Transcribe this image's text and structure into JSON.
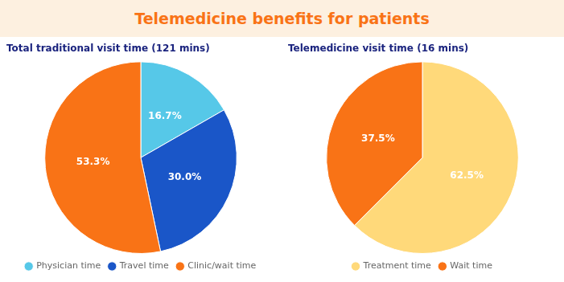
{
  "title": "Telemedicine benefits for patients",
  "chart_data": [
    {
      "type": "pie",
      "title": "Total traditional visit time (121 mins)",
      "categories": [
        "Physician time",
        "Travel time",
        "Clinic/wait time"
      ],
      "values": [
        16.7,
        30.0,
        53.3
      ],
      "value_labels": [
        "16.7%",
        "30.0%",
        "53.3%"
      ],
      "colors": [
        "#56C8E8",
        "#1A56C8",
        "#F97316"
      ],
      "data_labels": true,
      "legend": "bottom"
    },
    {
      "type": "pie",
      "title": "Telemedicine visit time (16 mins)",
      "categories": [
        "Treatment time",
        "Wait time"
      ],
      "values": [
        62.5,
        37.5
      ],
      "value_labels": [
        "62.5%",
        "37.5%"
      ],
      "colors": [
        "#FFD97A",
        "#F97316"
      ],
      "data_labels": true,
      "legend": "bottom"
    }
  ]
}
